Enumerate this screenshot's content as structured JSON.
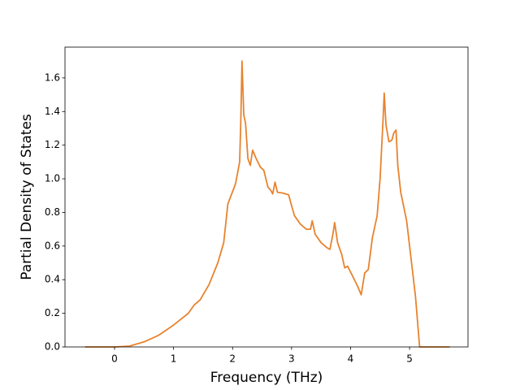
{
  "chart_data": {
    "type": "line",
    "xlabel": "Frequency (THz)",
    "ylabel": "Partial Density of States",
    "xlim": [
      -0.84,
      5.99
    ],
    "ylim": [
      0,
      1.783
    ],
    "xticks": [
      0,
      1,
      2,
      3,
      4,
      5
    ],
    "yticks": [
      {
        "value": 0,
        "label": "0.0"
      },
      {
        "value": 0.2,
        "label": "0.2"
      },
      {
        "value": 0.4,
        "label": "0.4"
      },
      {
        "value": 0.6,
        "label": "0.6"
      },
      {
        "value": 0.8,
        "label": "0.8"
      },
      {
        "value": 1.0,
        "label": "1.0"
      },
      {
        "value": 1.2,
        "label": "1.2"
      },
      {
        "value": 1.4,
        "label": "1.4"
      },
      {
        "value": 1.6,
        "label": "1.6"
      }
    ],
    "x": [
      -0.5,
      0,
      0.25,
      0.5,
      0.75,
      1.0,
      1.25,
      1.35,
      1.45,
      1.6,
      1.75,
      1.85,
      1.92,
      2.05,
      2.12,
      2.14,
      2.16,
      2.19,
      2.22,
      2.26,
      2.3,
      2.34,
      2.4,
      2.47,
      2.53,
      2.6,
      2.65,
      2.68,
      2.72,
      2.76,
      2.85,
      2.95,
      3.0,
      3.05,
      3.15,
      3.25,
      3.32,
      3.35,
      3.4,
      3.5,
      3.6,
      3.65,
      3.7,
      3.73,
      3.78,
      3.85,
      3.9,
      3.95,
      4.05,
      4.12,
      4.18,
      4.24,
      4.3,
      4.37,
      4.45,
      4.5,
      4.55,
      4.57,
      4.6,
      4.65,
      4.7,
      4.73,
      4.77,
      4.8,
      4.85,
      4.95,
      5.0,
      5.1,
      5.17,
      5.68
    ],
    "series": [
      {
        "color": "#e8832e",
        "values": [
          0,
          0,
          0.005,
          0.03,
          0.07,
          0.13,
          0.2,
          0.25,
          0.28,
          0.37,
          0.5,
          0.62,
          0.85,
          0.97,
          1.1,
          1.35,
          1.7,
          1.38,
          1.33,
          1.12,
          1.08,
          1.17,
          1.12,
          1.07,
          1.05,
          0.95,
          0.93,
          0.91,
          0.98,
          0.92,
          0.915,
          0.905,
          0.84,
          0.78,
          0.73,
          0.7,
          0.7,
          0.75,
          0.67,
          0.62,
          0.59,
          0.58,
          0.67,
          0.74,
          0.62,
          0.55,
          0.47,
          0.48,
          0.41,
          0.36,
          0.31,
          0.44,
          0.46,
          0.65,
          0.78,
          1.0,
          1.35,
          1.51,
          1.32,
          1.22,
          1.23,
          1.27,
          1.29,
          1.08,
          0.92,
          0.75,
          0.6,
          0.3,
          0,
          0
        ]
      }
    ]
  }
}
